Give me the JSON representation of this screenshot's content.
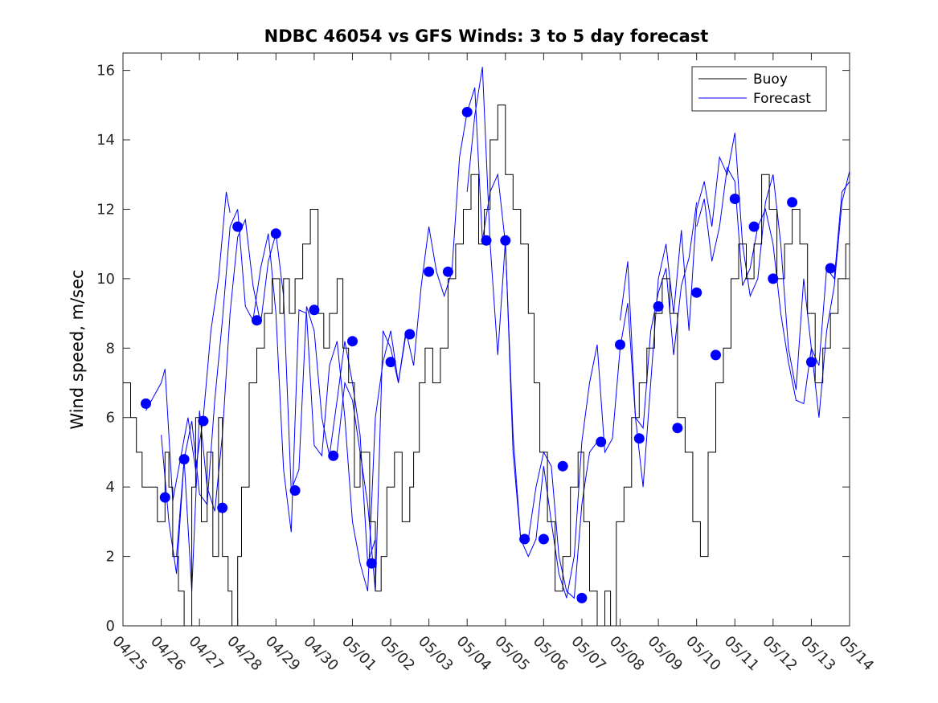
{
  "colors": {
    "buoy": "#000000",
    "forecast": "#0000ff",
    "marker": "#0000ff",
    "axis": "#262626"
  },
  "chart_data": {
    "type": "line",
    "title": "NDBC 46054 vs GFS Winds: 3 to 5 day forecast",
    "xlabel": "",
    "ylabel": "Wind speed, m/sec",
    "xlim": [
      "04/25",
      "05/14"
    ],
    "ylim": [
      0,
      16.5
    ],
    "yticks": [
      0,
      2,
      4,
      6,
      8,
      10,
      12,
      14,
      16
    ],
    "xticks": [
      "04/25",
      "04/26",
      "04/27",
      "04/28",
      "04/29",
      "04/30",
      "05/01",
      "05/02",
      "05/03",
      "05/04",
      "05/05",
      "05/06",
      "05/07",
      "05/08",
      "05/09",
      "05/10",
      "05/11",
      "05/12",
      "05/13",
      "05/14"
    ],
    "x_unit": "days from 04/25 00:00",
    "grid": false,
    "legend": {
      "position": "top-right",
      "entries": [
        "Buoy",
        "Forecast"
      ]
    },
    "series": [
      {
        "name": "Buoy",
        "style": "line-black-stepped-integer",
        "x": [
          0,
          0.2,
          0.35,
          0.5,
          0.7,
          0.9,
          1.1,
          1.2,
          1.3,
          1.45,
          1.6,
          1.8,
          1.9,
          2.05,
          2.2,
          2.35,
          2.5,
          2.6,
          2.75,
          2.85,
          3.0,
          3.1,
          3.3,
          3.5,
          3.7,
          3.9,
          4.1,
          4.2,
          4.35,
          4.5,
          4.7,
          4.9,
          5.1,
          5.25,
          5.4,
          5.6,
          5.75,
          5.9,
          6.05,
          6.2,
          6.45,
          6.6,
          6.75,
          6.9,
          7.1,
          7.3,
          7.5,
          7.6,
          7.75,
          7.9,
          8.1,
          8.3,
          8.5,
          8.7,
          8.9,
          9.1,
          9.3,
          9.45,
          9.6,
          9.8,
          10.0,
          10.2,
          10.4,
          10.6,
          10.75,
          10.9,
          11.1,
          11.3,
          11.5,
          11.7,
          11.9,
          12.05,
          12.2,
          12.4,
          12.6,
          12.75,
          12.9,
          13.1,
          13.3,
          13.5,
          13.7,
          13.9,
          14.1,
          14.3,
          14.5,
          14.7,
          14.9,
          15.1,
          15.3,
          15.5,
          15.7,
          15.9,
          16.1,
          16.3,
          16.5,
          16.7,
          16.9,
          17.1,
          17.3,
          17.5,
          17.7,
          17.9,
          18.1,
          18.3,
          18.5,
          18.7,
          18.9,
          19.0
        ],
        "y": [
          7,
          6,
          5,
          4,
          4,
          3,
          5,
          4,
          2,
          1,
          0,
          4,
          6,
          3,
          5,
          2,
          6,
          2,
          1,
          0,
          2,
          4,
          7,
          8,
          9,
          10,
          9,
          10,
          9,
          10,
          11,
          12,
          9,
          8,
          9,
          10,
          8,
          7,
          4,
          5,
          3,
          1,
          2,
          4,
          5,
          3,
          4,
          5,
          7,
          8,
          7,
          8,
          10,
          11,
          12,
          13,
          11,
          12,
          14,
          15,
          13,
          12,
          11,
          9,
          7,
          5,
          3,
          1,
          2,
          4,
          5,
          3,
          1,
          0,
          1,
          0,
          3,
          4,
          6,
          7,
          8,
          9,
          10,
          9,
          6,
          5,
          3,
          2,
          5,
          7,
          8,
          10,
          11,
          10,
          11,
          13,
          12,
          10,
          11,
          12,
          11,
          9,
          7,
          8,
          9,
          10,
          11,
          12
        ]
      },
      {
        "name": "Forecast",
        "style": "line-blue",
        "runs": [
          {
            "x": [
              0.6,
              0.8,
              1.0,
              1.1,
              1.3,
              1.5,
              1.7,
              1.9,
              2.1,
              2.3,
              2.5,
              2.7,
              2.8
            ],
            "y": [
              6.2,
              6.6,
              7.0,
              7.4,
              3.6,
              4.8,
              6.0,
              4.5,
              6.0,
              8.5,
              10.0,
              12.5,
              11.9
            ]
          },
          {
            "x": [
              1.0,
              1.2,
              1.4,
              1.6,
              1.8,
              2.0,
              2.2,
              2.4,
              2.6,
              2.8,
              3.0,
              3.2,
              3.4,
              3.6,
              3.8,
              4.0,
              4.2,
              4.4,
              4.6,
              4.8,
              5.0,
              5.2,
              5.4,
              5.6,
              5.8,
              6.0,
              6.2,
              6.4,
              6.6
            ],
            "y": [
              5.5,
              3.0,
              1.5,
              4.8,
              1.0,
              6.2,
              4.0,
              3.3,
              5.5,
              9.0,
              11.2,
              11.7,
              9.8,
              8.7,
              10.5,
              11.3,
              9.5,
              3.9,
              4.5,
              9.2,
              8.5,
              6.0,
              4.9,
              6.5,
              8.2,
              7.0,
              5.5,
              1.8,
              2.5
            ]
          },
          {
            "x": [
              1.4,
              1.6,
              1.8,
              2.0,
              2.2,
              2.4,
              2.6,
              2.8,
              3.0,
              3.2,
              3.4,
              3.6,
              3.8,
              4.0,
              4.2,
              4.4,
              4.6,
              4.8,
              5.0,
              5.2,
              5.4,
              5.6,
              5.8,
              6.0,
              6.2,
              6.4,
              6.6,
              6.8,
              7.0,
              7.2,
              7.4
            ],
            "y": [
              2.0,
              4.8,
              5.9,
              3.8,
              3.5,
              6.5,
              8.8,
              11.5,
              12.0,
              9.2,
              8.8,
              10.3,
              11.3,
              9.0,
              4.5,
              2.7,
              9.1,
              9.0,
              5.2,
              4.9,
              7.5,
              8.2,
              6.0,
              3.0,
              1.8,
              1.0,
              6.0,
              7.6,
              8.5,
              7.0,
              8.4
            ]
          },
          {
            "x": [
              5.6,
              5.8,
              6.0,
              6.2,
              6.4,
              6.6,
              6.8,
              7.0,
              7.2,
              7.4,
              7.6,
              7.8,
              8.0,
              8.2,
              8.4,
              8.6,
              8.8,
              9.0,
              9.2,
              9.4,
              9.6,
              9.8,
              10.0,
              10.2,
              10.4,
              10.6,
              10.8,
              11.0,
              11.2,
              11.4,
              11.6,
              11.8,
              12.0,
              12.2,
              12.4
            ],
            "y": [
              5.0,
              7.0,
              6.5,
              5.0,
              3.5,
              1.0,
              8.5,
              8.0,
              7.0,
              8.5,
              7.5,
              9.8,
              11.5,
              10.2,
              9.5,
              10.2,
              13.5,
              14.8,
              15.5,
              11.1,
              12.5,
              13.0,
              11.0,
              5.5,
              2.5,
              2.5,
              4.0,
              5.0,
              4.6,
              2.0,
              1.0,
              0.8,
              3.5,
              5.0,
              5.3
            ]
          },
          {
            "x": [
              9.0,
              9.2,
              9.4,
              9.6,
              9.8,
              10.0,
              10.2,
              10.4,
              10.6,
              10.8,
              11.0,
              11.2,
              11.4,
              11.6,
              11.8,
              12.0,
              12.2,
              12.4,
              12.6,
              12.8,
              13.0,
              13.2,
              13.4,
              13.6,
              13.8,
              14.0,
              14.2,
              14.4,
              14.6,
              14.8,
              15.0
            ],
            "y": [
              12.5,
              14.7,
              16.1,
              11.0,
              7.8,
              11.1,
              5.0,
              2.5,
              2.0,
              2.5,
              4.6,
              3.0,
              1.5,
              0.8,
              2.0,
              5.3,
              7.0,
              8.1,
              5.0,
              5.4,
              8.0,
              9.3,
              6.0,
              5.7,
              8.5,
              9.6,
              10.3,
              7.8,
              9.8,
              10.6,
              12.2
            ]
          },
          {
            "x": [
              13.0,
              13.2,
              13.4,
              13.6,
              13.8,
              14.0,
              14.2,
              14.4,
              14.6,
              14.8,
              15.0,
              15.2,
              15.4,
              15.6,
              15.8,
              16.0,
              16.2,
              16.4,
              16.6,
              16.8,
              17.0,
              17.2,
              17.4,
              17.6,
              17.8,
              18.0,
              18.2,
              18.4,
              18.6,
              18.8,
              19.0
            ],
            "y": [
              8.8,
              10.5,
              6.0,
              4.0,
              7.0,
              10.0,
              11.0,
              9.0,
              11.4,
              8.5,
              12.0,
              12.8,
              11.5,
              13.5,
              13.0,
              14.2,
              11.0,
              9.5,
              10.0,
              12.2,
              13.0,
              11.0,
              8.0,
              6.8,
              10.0,
              8.0,
              6.0,
              8.5,
              9.8,
              12.2,
              13.1
            ]
          },
          {
            "x": [
              15.0,
              15.2,
              15.4,
              15.6,
              15.8,
              16.0,
              16.2,
              16.4,
              16.6,
              16.8,
              17.0,
              17.2,
              17.4,
              17.6,
              17.8,
              18.0,
              18.2,
              18.4,
              18.6,
              18.8,
              19.0
            ],
            "y": [
              11.5,
              12.3,
              10.5,
              11.5,
              13.2,
              12.8,
              9.8,
              10.3,
              11.5,
              12.0,
              11.0,
              9.0,
              7.6,
              6.5,
              6.4,
              8.0,
              7.5,
              10.3,
              10.0,
              12.5,
              12.8
            ]
          }
        ],
        "markers": {
          "x": [
            0.6,
            1.1,
            1.6,
            2.1,
            2.6,
            3.0,
            3.5,
            4.0,
            4.5,
            5.0,
            5.5,
            6.0,
            6.5,
            7.0,
            7.5,
            8.0,
            8.5,
            9.0,
            9.5,
            10.0,
            10.5,
            11.0,
            11.5,
            12.0,
            12.5,
            13.0,
            13.5,
            14.0,
            14.5,
            15.0,
            15.5,
            16.0,
            16.5,
            17.0,
            17.5
          ],
          "y": [
            6.4,
            3.7,
            4.8,
            5.9,
            3.4,
            11.5,
            8.8,
            11.3,
            3.9,
            9.1,
            4.9,
            8.2,
            1.8,
            7.6,
            8.4,
            10.2,
            10.2,
            14.8,
            11.1,
            11.1,
            2.5,
            2.5,
            4.6,
            0.8,
            5.3,
            8.1,
            5.4,
            9.2,
            5.7,
            9.6,
            7.8,
            12.3,
            11.5,
            10.0,
            12.2
          ]
        },
        "markers_extra": {
          "x": [
            18.0,
            18.5
          ],
          "y": [
            7.6,
            10.3
          ]
        }
      }
    ]
  }
}
